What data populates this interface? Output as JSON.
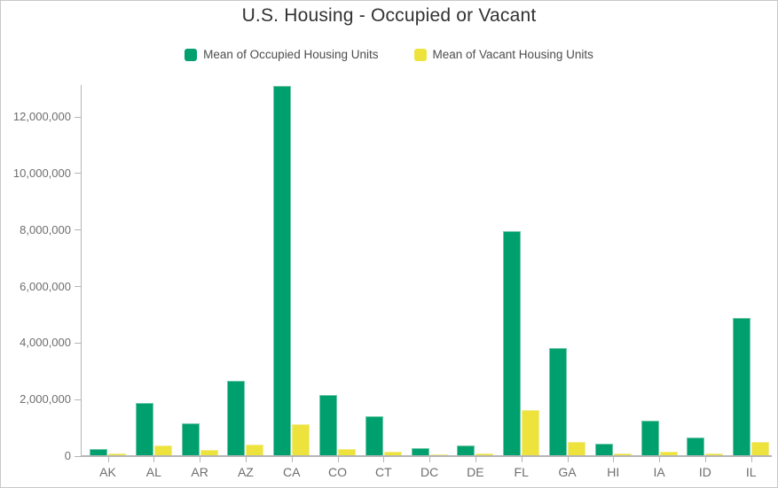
{
  "window": {
    "background": "#ffffff",
    "border_color": "#c9c9c9"
  },
  "chart_data": {
    "type": "bar",
    "title": "U.S. Housing - Occupied or Vacant",
    "xlabel": "",
    "ylabel": "",
    "categories": [
      "AK",
      "AL",
      "AR",
      "AZ",
      "CA",
      "CO",
      "CT",
      "DC",
      "DE",
      "FL",
      "GA",
      "HI",
      "IA",
      "ID",
      "IL"
    ],
    "series": [
      {
        "name": "Mean of Occupied Housing Units",
        "color": "#00a06e",
        "values": [
          230000,
          1850000,
          1120000,
          2620000,
          13060000,
          2120000,
          1370000,
          250000,
          335000,
          7920000,
          3800000,
          420000,
          1230000,
          620000,
          4850000
        ]
      },
      {
        "name": "Mean of Vacant Housing Units",
        "color": "#eee23c",
        "values": [
          70000,
          355000,
          180000,
          380000,
          1090000,
          210000,
          110000,
          35000,
          60000,
          1590000,
          460000,
          70000,
          120000,
          65000,
          470000
        ]
      }
    ],
    "yticks": [
      0,
      2000000,
      4000000,
      6000000,
      8000000,
      10000000,
      12000000
    ],
    "ytick_labels": [
      "0",
      "2,000,000",
      "4,000,000",
      "6,000,000",
      "8,000,000",
      "10,000,000",
      "12,000,000"
    ],
    "ylim": [
      0,
      13400000
    ],
    "grid": false,
    "legend_position": "top",
    "axis_color": "#b5b5b5",
    "tick_label_color": "#6e6e6e",
    "title_color": "#323232",
    "legend_text_color": "#4d4d4d"
  }
}
